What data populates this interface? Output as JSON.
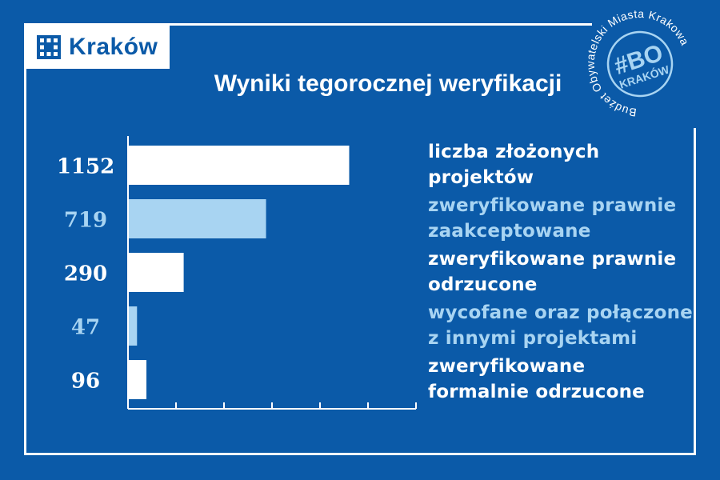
{
  "brand": {
    "name": "Kraków",
    "logo_icon": "krakow-grid-logo"
  },
  "stamp": {
    "ring_text": "Budżet Obywatelski Miasta Krakowa",
    "hashtag": "#BO",
    "city": "KRAKÓW",
    "icon": "bo-krakow-stamp"
  },
  "colors": {
    "background": "#0b5aa8",
    "primary": "#ffffff",
    "secondary": "#a8d4f2"
  },
  "chart_data": {
    "type": "bar",
    "orientation": "horizontal",
    "title": "Wyniki tegorocznej weryfikacji",
    "categories": [
      {
        "lines": [
          "liczba złożonych",
          "projektów"
        ],
        "value_label": "1152",
        "color": "primary"
      },
      {
        "lines": [
          "zweryfikowane prawnie",
          "zaakceptowane"
        ],
        "value_label": "719",
        "color": "secondary"
      },
      {
        "lines": [
          "zweryfikowane prawnie",
          "odrzucone"
        ],
        "value_label": "290",
        "color": "primary"
      },
      {
        "lines": [
          "wycofane oraz połączone",
          "z innymi projektami"
        ],
        "value_label": "47",
        "color": "secondary"
      },
      {
        "lines": [
          "zweryfikowane",
          "formalnie odrzucone"
        ],
        "value_label": "96",
        "color": "primary"
      }
    ],
    "values": [
      1152,
      719,
      290,
      47,
      96
    ],
    "xlim": [
      0,
      1500
    ],
    "grid": false,
    "legend": "none"
  }
}
